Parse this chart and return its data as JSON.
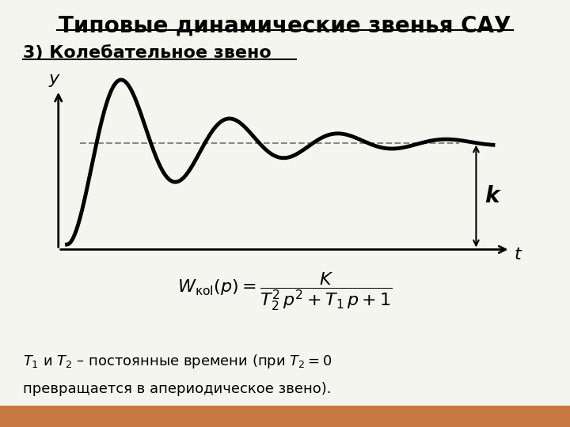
{
  "title": "Типовые динамические звенья САУ",
  "subtitle": "3) Колебательное звено",
  "background_color": "#f5f5f0",
  "bottom_bar_color": "#c87941",
  "title_fontsize": 20,
  "subtitle_fontsize": 16,
  "formula_text": "$W_{\\mathrm{\\kappa o l}}(p) = \\dfrac{K}{T_2^2\\, p^2 + T_1\\, p + 1}$",
  "bottom_text_line1": "$T_1$ и $T_2$ – постоянные времени (при $T_2 = 0$",
  "bottom_text_line2": "превращается в апериодическое звено).",
  "k_label": "k",
  "t_label": "t",
  "y_label": "y",
  "dashed_line_color": "#888888",
  "curve_color": "#000000",
  "arrow_color": "#000000",
  "curve_linewidth": 3.5,
  "axis_linewidth": 2.0,
  "K": 1.0,
  "zeta": 0.15,
  "omega_n": 2.5
}
